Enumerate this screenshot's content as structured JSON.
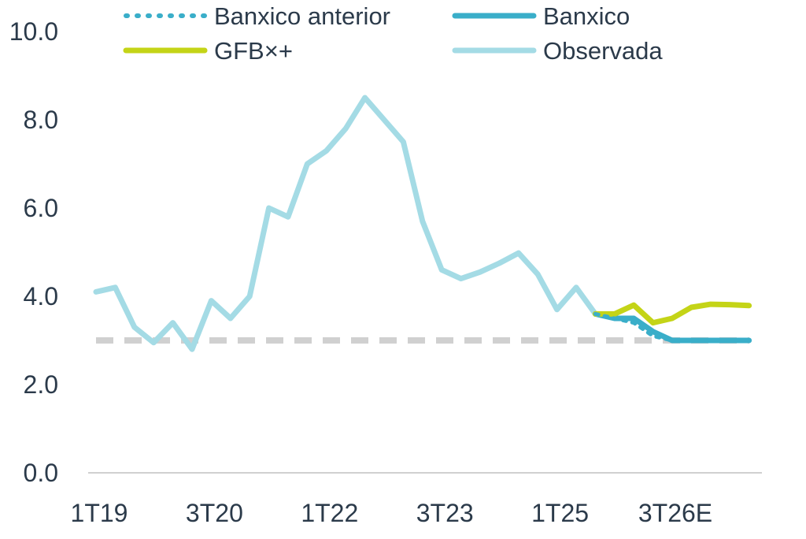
{
  "chart_data": {
    "type": "line",
    "ylim": [
      0,
      10
    ],
    "y_ticks": [
      "0.0",
      "2.0",
      "4.0",
      "6.0",
      "8.0",
      "10.0"
    ],
    "x_tick_labels": [
      {
        "index": 0,
        "label": "1T19"
      },
      {
        "index": 6,
        "label": "3T20"
      },
      {
        "index": 12,
        "label": "1T22"
      },
      {
        "index": 18,
        "label": "3T23"
      },
      {
        "index": 24,
        "label": "1T25"
      },
      {
        "index": 30,
        "label": "3T26E"
      }
    ],
    "grid": false,
    "legend_placement": "top",
    "target": {
      "value": 3.0,
      "color": "#d0d0d0",
      "style": "dashed"
    },
    "series": [
      {
        "name": "Banxico anterior",
        "color": "#3aaec9",
        "style": "dotted",
        "points": [
          [
            26,
            3.6
          ],
          [
            27,
            3.5
          ],
          [
            28,
            3.4
          ],
          [
            29,
            3.1
          ],
          [
            30,
            3.0
          ],
          [
            31,
            3.0
          ],
          [
            32,
            3.0
          ],
          [
            33,
            3.0
          ],
          [
            34,
            3.0
          ]
        ]
      },
      {
        "name": "Banxico",
        "color": "#3aaec9",
        "style": "solid",
        "points": [
          [
            26,
            3.6
          ],
          [
            27,
            3.5
          ],
          [
            28,
            3.5
          ],
          [
            29,
            3.2
          ],
          [
            30,
            3.0
          ],
          [
            31,
            3.0
          ],
          [
            32,
            3.0
          ],
          [
            33,
            3.0
          ],
          [
            34,
            3.0
          ]
        ]
      },
      {
        "name": "GFB×+",
        "color": "#c4d417",
        "style": "solid",
        "points": [
          [
            26,
            3.6
          ],
          [
            27,
            3.6
          ],
          [
            28,
            3.8
          ],
          [
            29,
            3.4
          ],
          [
            30,
            3.5
          ],
          [
            31,
            3.75
          ],
          [
            32,
            3.82
          ],
          [
            33,
            3.81
          ],
          [
            34,
            3.79
          ]
        ]
      },
      {
        "name": "Observada",
        "color": "#a4dbe5",
        "style": "solid",
        "points": [
          [
            0,
            4.1
          ],
          [
            1,
            4.2
          ],
          [
            2,
            3.3
          ],
          [
            3,
            2.95
          ],
          [
            4,
            3.4
          ],
          [
            5,
            2.8
          ],
          [
            6,
            3.9
          ],
          [
            7,
            3.5
          ],
          [
            8,
            4.0
          ],
          [
            9,
            6.0
          ],
          [
            10,
            5.8
          ],
          [
            11,
            7.0
          ],
          [
            12,
            7.3
          ],
          [
            13,
            7.8
          ],
          [
            14,
            8.5
          ],
          [
            15,
            8.0
          ],
          [
            16,
            7.5
          ],
          [
            17,
            5.7
          ],
          [
            18,
            4.6
          ],
          [
            19,
            4.4
          ],
          [
            20,
            4.55
          ],
          [
            21,
            4.75
          ],
          [
            22,
            4.98
          ],
          [
            23,
            4.5
          ],
          [
            24,
            3.7
          ],
          [
            25,
            4.2
          ],
          [
            26,
            3.6
          ]
        ]
      }
    ]
  }
}
